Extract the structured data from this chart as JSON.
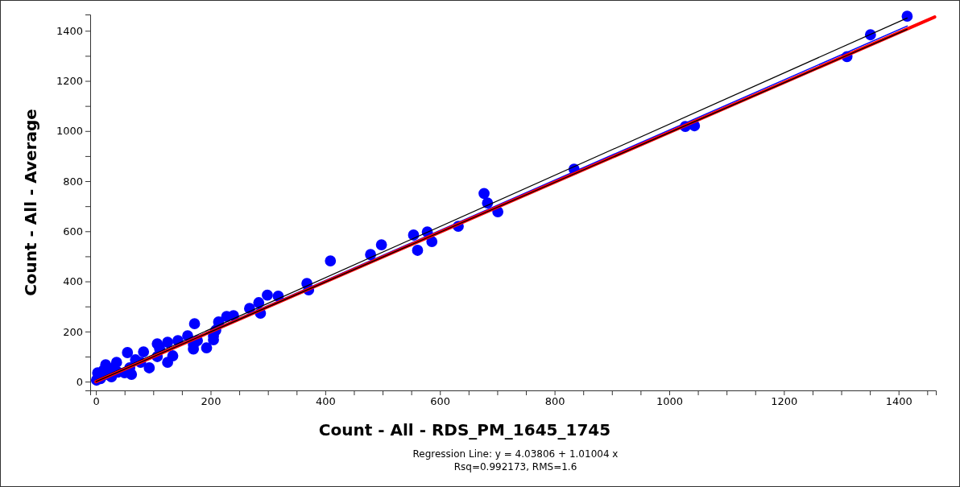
{
  "chart_data": {
    "type": "scatter",
    "xlabel": "Count - All - RDS_PM_1645_1745",
    "ylabel": "Count - All - Average",
    "annotations": [
      "Regression Line: y = 4.03806 + 1.01004 x",
      "Rsq=0.992173, RMS=1.6"
    ],
    "xlim": [
      -10,
      1465
    ],
    "ylim": [
      -35,
      1465
    ],
    "xticks": [
      0,
      {
        "value": 50,
        "label": null
      },
      {
        "value": 100,
        "label": null
      },
      {
        "value": 150,
        "label": null
      },
      200,
      {
        "value": 250,
        "label": null
      },
      {
        "value": 300,
        "label": null
      },
      {
        "value": 350,
        "label": null
      },
      400,
      {
        "value": 450,
        "label": null
      },
      {
        "value": 500,
        "label": null
      },
      {
        "value": 550,
        "label": null
      },
      600,
      {
        "value": 650,
        "label": null
      },
      {
        "value": 700,
        "label": null
      },
      {
        "value": 750,
        "label": null
      },
      800,
      {
        "value": 850,
        "label": null
      },
      {
        "value": 900,
        "label": null
      },
      {
        "value": 950,
        "label": null
      },
      1000,
      {
        "value": 1050,
        "label": null
      },
      {
        "value": 1100,
        "label": null
      },
      {
        "value": 1150,
        "label": null
      },
      1200,
      {
        "value": 1250,
        "label": null
      },
      {
        "value": 1300,
        "label": null
      },
      {
        "value": 1350,
        "label": null
      },
      1400,
      {
        "value": 1450,
        "label": null
      }
    ],
    "yticks": [
      0,
      {
        "value": 100,
        "label": null
      },
      200,
      {
        "value": 300,
        "label": null
      },
      400,
      {
        "value": 500,
        "label": null
      },
      600,
      {
        "value": 700,
        "label": null
      },
      800,
      {
        "value": 900,
        "label": null
      },
      1000,
      {
        "value": 1100,
        "label": null
      },
      1200,
      {
        "value": 1300,
        "label": null
      },
      1400
    ],
    "grid": false,
    "series": [
      {
        "color": "#0000ff",
        "marker": "circle",
        "x": [
          1415,
          1351,
          1310,
          1028,
          1044,
          834,
          677,
          683,
          701,
          632,
          586,
          578,
          554,
          561,
          498,
          479,
          409,
          368,
          371,
          284,
          287,
          299,
          318,
          268,
          240,
          228,
          214,
          209,
          205,
          205,
          193,
          177,
          172,
          170,
          170,
          160,
          143,
          134,
          125,
          125,
          111,
          107,
          107,
          93,
          83,
          78,
          69,
          62,
          59,
          55,
          50,
          38,
          36,
          31,
          27,
          17,
          13,
          3,
          1,
          8,
          20
        ],
        "values": [
          1458,
          1384,
          1297,
          1018,
          1021,
          848,
          751,
          713,
          678,
          620,
          559,
          597,
          585,
          524,
          546,
          507,
          482,
          392,
          366,
          315,
          273,
          345,
          341,
          292,
          263,
          260,
          238,
          205,
          183,
          167,
          135,
          164,
          231,
          148,
          130,
          183,
          164,
          103,
          157,
          77,
          132,
          151,
          100,
          55,
          119,
          77,
          87,
          29,
          55,
          116,
          35,
          38,
          77,
          55,
          19,
          67,
          45,
          35,
          6,
          12,
          28
        ]
      },
      {
        "type": "line",
        "color": "#000000",
        "marker": "none",
        "line_style": "solid",
        "x": [
          0,
          1415
        ],
        "values": [
          6,
          1451
        ]
      },
      {
        "type": "line",
        "color": "#0000ff",
        "marker": "none",
        "line_style": "solid",
        "x": [
          0,
          1415
        ],
        "values": [
          3,
          1419
        ]
      },
      {
        "type": "line",
        "color": "#ff0000",
        "marker": "none",
        "line_style": "solid",
        "x": [
          0,
          1463
        ],
        "values": [
          0,
          1455
        ]
      },
      {
        "type": "line",
        "color": "#000000",
        "marker": "none",
        "line_style": "solid",
        "x": [
          0,
          1415
        ],
        "values": [
          0,
          1406
        ]
      }
    ]
  }
}
